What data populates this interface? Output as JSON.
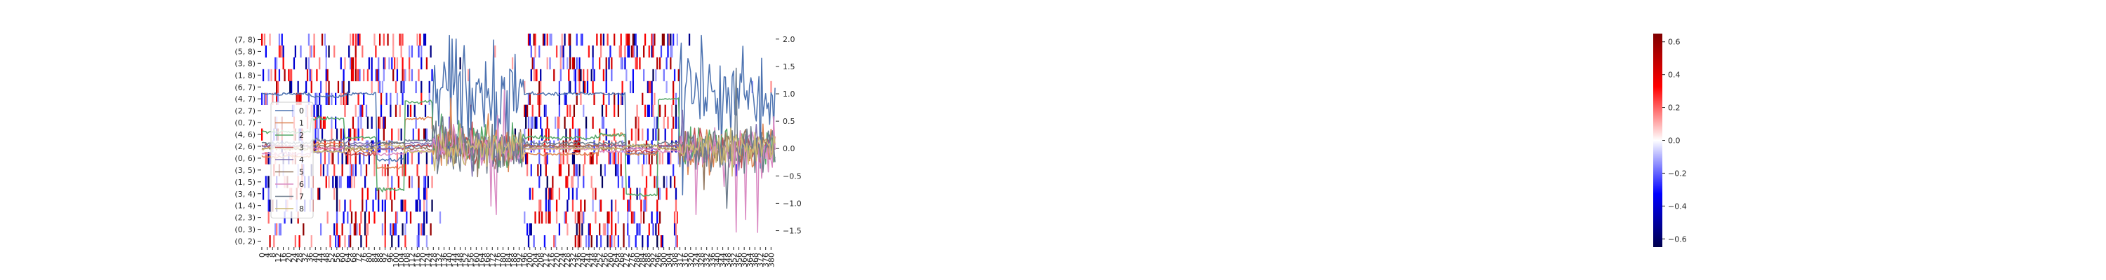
{
  "chart_data": {
    "type": "heatmap",
    "title": "",
    "colormap": "seismic",
    "colorbar": {
      "min": -0.65,
      "max": 0.65,
      "ticks": [
        "0.6",
        "0.4",
        "0.2",
        "0.0",
        "−0.2",
        "−0.4",
        "−0.6"
      ],
      "tick_values": [
        0.6,
        0.4,
        0.2,
        0.0,
        -0.2,
        -0.4,
        -0.6
      ]
    },
    "heatmap": {
      "row_labels": [
        "(7, 8)",
        "(5, 8)",
        "(3, 8)",
        "(1, 8)",
        "(6, 7)",
        "(4, 7)",
        "(2, 7)",
        "(0, 7)",
        "(4, 6)",
        "(2, 6)",
        "(0, 6)",
        "(3, 5)",
        "(1, 5)",
        "(3, 4)",
        "(1, 4)",
        "(2, 3)",
        "(0, 3)",
        "(0, 2)"
      ],
      "columns": 384,
      "x_ticks": [
        "0",
        "4",
        "8",
        "12",
        "16",
        "20",
        "24",
        "28",
        "32",
        "36",
        "40",
        "44",
        "48",
        "52",
        "56",
        "60",
        "64",
        "68",
        "72",
        "76",
        "80",
        "84",
        "88",
        "92",
        "96",
        "100",
        "104",
        "108",
        "112",
        "116",
        "120",
        "124",
        "128",
        "132",
        "136",
        "140",
        "144",
        "148",
        "152",
        "156",
        "160",
        "164",
        "168",
        "172",
        "176",
        "180",
        "184",
        "188",
        "192",
        "196",
        "200",
        "204",
        "208",
        "212",
        "216",
        "220",
        "224",
        "228",
        "232",
        "236",
        "240",
        "244",
        "248",
        "252",
        "256",
        "260",
        "264",
        "268",
        "272",
        "276",
        "280",
        "284",
        "288",
        "292",
        "296",
        "300",
        "304",
        "308",
        "312",
        "316",
        "320",
        "324",
        "328",
        "332",
        "336",
        "340",
        "344",
        "348",
        "352",
        "356",
        "360",
        "364",
        "368",
        "372",
        "376",
        "380"
      ],
      "active_column_ranges": [
        [
          0,
          128
        ],
        [
          196,
          312
        ]
      ],
      "density_active": 0.24,
      "density_quiet": 0.005
    },
    "overlay": {
      "type": "line",
      "y_range": [
        -1.8,
        2.1
      ],
      "y_ticks": [
        "2.0",
        "1.5",
        "1.0",
        "0.5",
        "0.0",
        "−0.5",
        "−1.0",
        "−1.5"
      ],
      "y_tick_values": [
        2.0,
        1.5,
        1.0,
        0.5,
        0.0,
        -0.5,
        -1.0,
        -1.5
      ],
      "x_range": [
        0,
        384
      ],
      "segment_breaks": [
        0,
        37,
        62,
        86,
        107,
        128,
        196,
        252,
        272,
        296,
        312,
        384
      ],
      "series": [
        {
          "name": "0",
          "color": "#4c72b0",
          "levels": [
            1.0,
            0.95,
            1.0,
            -0.2,
            0.05,
            null,
            1.0,
            1.0,
            -0.1,
            0.05,
            null
          ]
        },
        {
          "name": "1",
          "color": "#dd8452",
          "levels": [
            -0.15,
            0.1,
            -0.05,
            -0.35,
            0.55,
            null,
            -0.1,
            0.25,
            -0.1,
            0.05,
            null
          ]
        },
        {
          "name": "2",
          "color": "#55a868",
          "levels": [
            0.3,
            0.55,
            0.2,
            -0.75,
            0.85,
            null,
            0.2,
            0.25,
            -0.85,
            0.9,
            null
          ]
        },
        {
          "name": "3",
          "color": "#c44e52",
          "levels": [
            0.05,
            0.0,
            -0.1,
            0.0,
            0.05,
            null,
            0.05,
            0.05,
            -0.05,
            0.05,
            null
          ]
        },
        {
          "name": "4",
          "color": "#8172b3",
          "levels": [
            0.05,
            -0.05,
            0.1,
            0.0,
            0.1,
            null,
            0.0,
            0.05,
            0.0,
            0.05,
            null
          ]
        },
        {
          "name": "5",
          "color": "#937860",
          "levels": [
            0.0,
            0.05,
            0.0,
            0.1,
            0.0,
            null,
            0.05,
            0.0,
            0.05,
            0.0,
            null
          ]
        },
        {
          "name": "6",
          "color": "#da8bc3",
          "levels": [
            -0.1,
            0.0,
            0.05,
            -0.1,
            -0.05,
            null,
            0.0,
            -0.05,
            0.0,
            -0.05,
            null
          ]
        },
        {
          "name": "7",
          "color": "#6c7b8b",
          "levels": [
            0.1,
            0.15,
            0.05,
            0.1,
            0.15,
            null,
            0.1,
            0.1,
            0.05,
            0.1,
            null
          ]
        },
        {
          "name": "8",
          "color": "#ccb974",
          "levels": [
            0.0,
            -0.05,
            0.0,
            0.05,
            -0.05,
            null,
            0.0,
            0.0,
            0.05,
            0.0,
            null
          ]
        }
      ],
      "volatility": [
        0.9,
        0.35,
        0.35,
        0.3,
        0.3,
        0.3,
        0.35,
        0.45,
        0.3
      ],
      "legend_placement": "left"
    }
  }
}
